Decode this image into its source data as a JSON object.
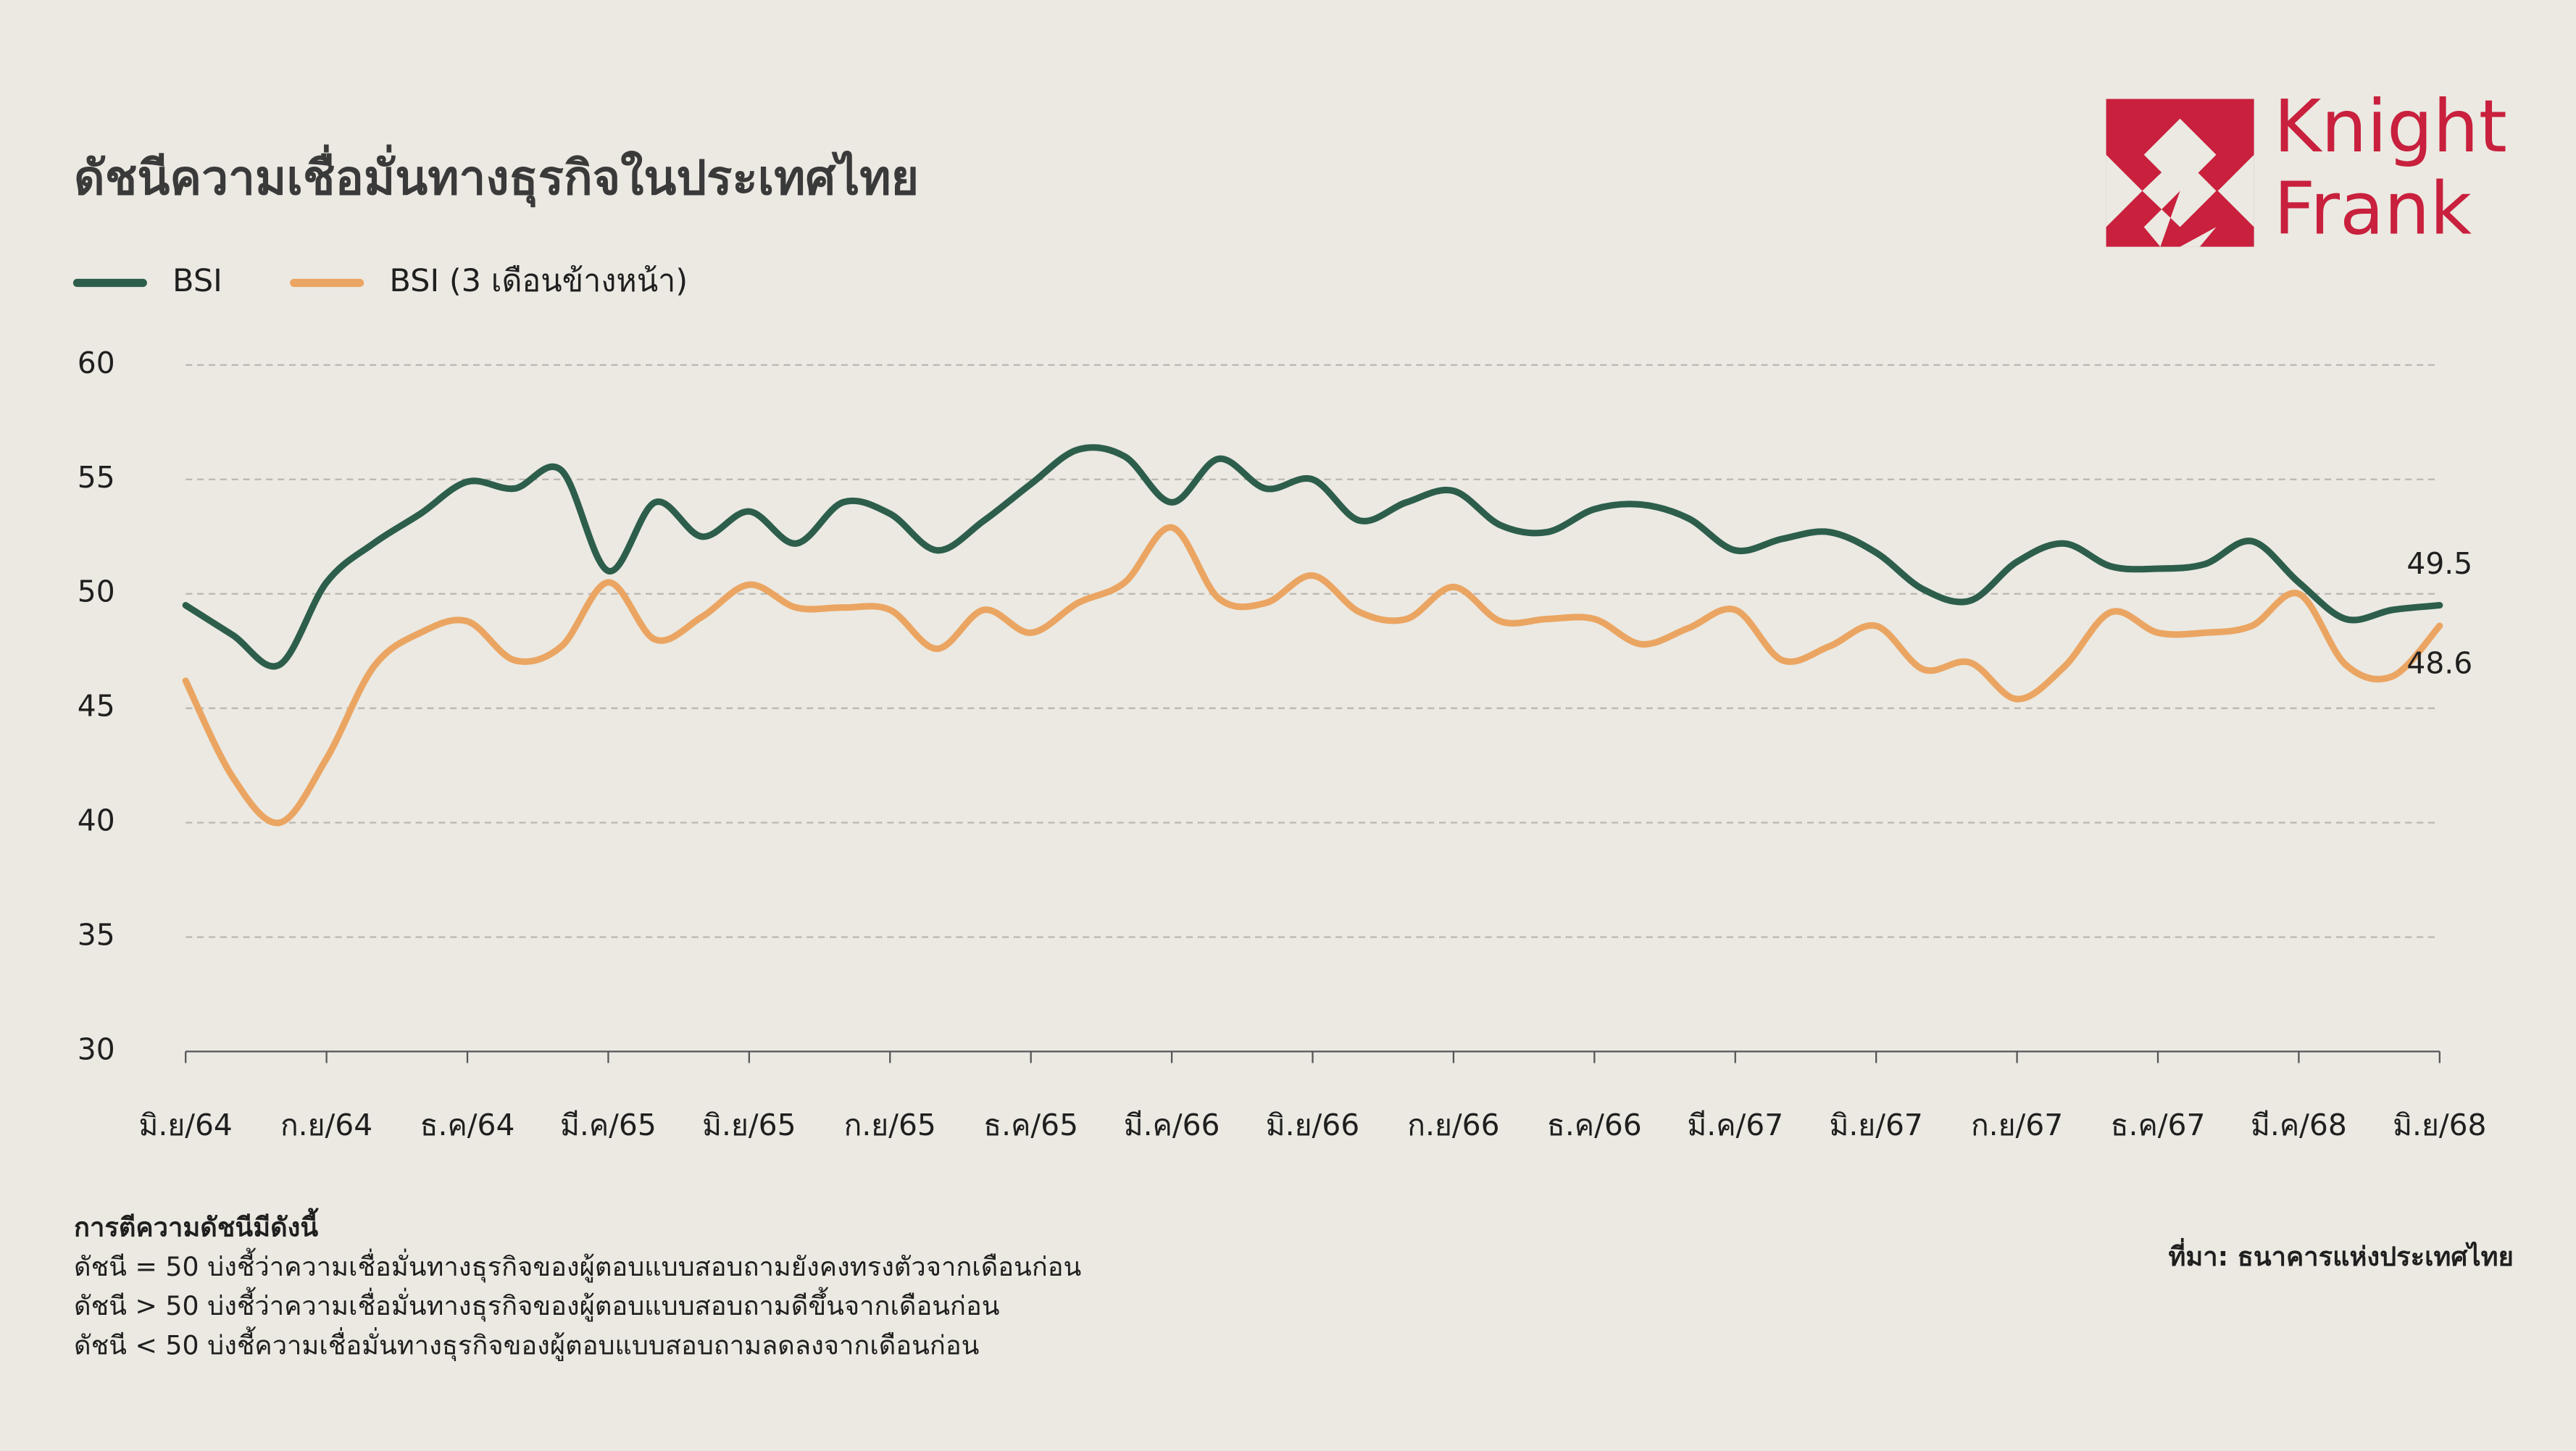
{
  "chart_data": {
    "type": "line",
    "title": "ดัชนีความเชื่อมั่นทางธุรกิจในประเทศไทย",
    "logo": [
      "Knight",
      "Frank"
    ],
    "categories": [
      "มิ.ย/64",
      null,
      null,
      "ก.ย/64",
      null,
      null,
      "ธ.ค/64",
      null,
      null,
      "มี.ค/65",
      null,
      null,
      "มิ.ย/65",
      null,
      null,
      "ก.ย/65",
      null,
      null,
      "ธ.ค/65",
      null,
      null,
      "มี.ค/66",
      null,
      null,
      "มิ.ย/66",
      null,
      null,
      "ก.ย/66",
      null,
      null,
      "ธ.ค/66",
      null,
      null,
      "มี.ค/67",
      null,
      null,
      "มิ.ย/67",
      null,
      null,
      "ก.ย/67",
      null,
      null,
      "ธ.ค/67",
      null,
      null,
      "มี.ค/68",
      null,
      null,
      "มิ.ย/68"
    ],
    "series": [
      {
        "name": "BSI",
        "color": "#2d5e4c",
        "values": [
          49.5,
          48.2,
          46.9,
          50.5,
          52.2,
          53.5,
          54.9,
          54.6,
          55.4,
          51.0,
          54.0,
          52.5,
          53.6,
          52.2,
          54.0,
          53.5,
          51.9,
          53.2,
          54.8,
          56.3,
          56.0,
          54.0,
          55.9,
          54.6,
          55.0,
          53.2,
          54.0,
          54.5,
          53.0,
          52.7,
          53.7,
          53.9,
          53.3,
          51.9,
          52.4,
          52.7,
          51.8,
          50.2,
          49.7,
          51.4,
          52.2,
          51.2,
          51.1,
          51.3,
          52.3,
          50.5,
          48.9,
          49.3,
          49.5
        ]
      },
      {
        "name": "BSI (3 เดือนข้างหน้า)",
        "color": "#eba562",
        "values": [
          46.2,
          42.0,
          40.0,
          42.8,
          46.8,
          48.3,
          48.8,
          47.1,
          47.7,
          50.5,
          48.0,
          49.0,
          50.4,
          49.4,
          49.4,
          49.3,
          47.6,
          49.3,
          48.3,
          49.6,
          50.5,
          52.9,
          49.8,
          49.6,
          50.8,
          49.2,
          48.9,
          50.3,
          48.8,
          48.9,
          48.9,
          47.8,
          48.5,
          49.3,
          47.1,
          47.7,
          48.6,
          46.7,
          47.0,
          45.4,
          46.8,
          49.2,
          48.3,
          48.3,
          48.6,
          50.0,
          46.9,
          46.4,
          48.6
        ]
      }
    ],
    "ylim": [
      30,
      60
    ],
    "yticks": [
      30,
      35,
      40,
      45,
      50,
      55,
      60
    ],
    "grid": true,
    "notes": [
      "การตีความดัชนีมีดังนี้",
      "ดัชนี = 50 บ่งชี้ว่าความเชื่อมั่นทางธุรกิจของผู้ตอบแบบสอบถามยังคงทรงตัวจากเดือนก่อน",
      "ดัชนี > 50 บ่งชี้ว่าความเชื่อมั่นทางธุรกิจของผู้ตอบแบบสอบถามดีขึ้นจากเดือนก่อน",
      "ดัชนี < 50 บ่งชี้ความเชื่อมั่นทางธุรกิจของผู้ตอบแบบสอบถามลดลงจากเดือนก่อน"
    ],
    "source": "ที่มา: ธนาคารแห่งประเทศไทย"
  }
}
